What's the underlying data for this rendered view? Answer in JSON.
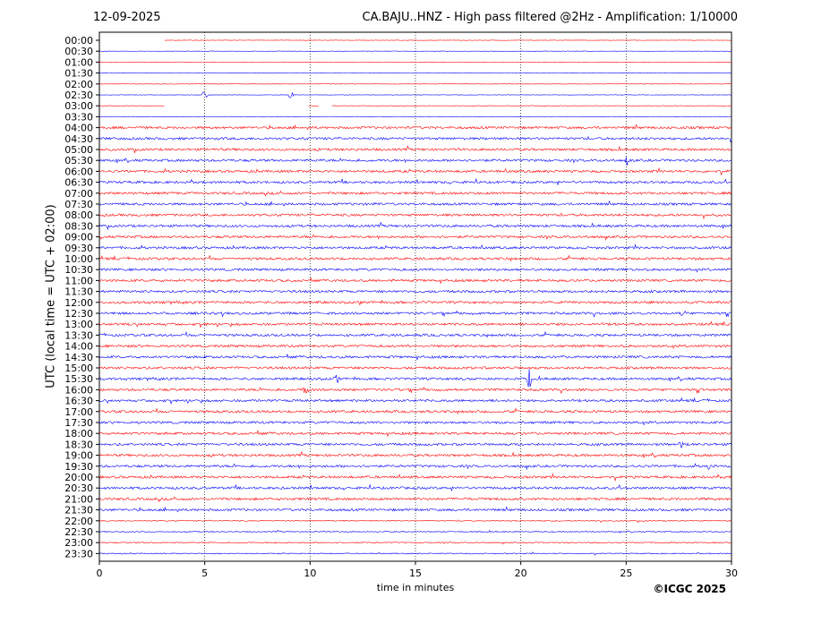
{
  "header": {
    "date": "12-09-2025",
    "title": "CA.BAJU..HNZ - High pass filtered @2Hz - Amplification: 1/10000"
  },
  "footer": {
    "copyright": "©ICGC 2025"
  },
  "chart_data": {
    "type": "line",
    "title": "CA.BAJU..HNZ - High pass filtered @2Hz - Amplification: 1/10000",
    "xlabel": "time in minutes",
    "ylabel": "UTC (local time = UTC + 02:00)",
    "xlim": [
      0,
      30
    ],
    "xticks": [
      0,
      5,
      10,
      15,
      20,
      25,
      30
    ],
    "grid": "vertical dotted lines at 5-minute intervals",
    "row_labels": [
      "00:00",
      "00:30",
      "01:00",
      "01:30",
      "02:00",
      "02:30",
      "03:00",
      "03:30",
      "04:00",
      "04:30",
      "05:00",
      "05:30",
      "06:00",
      "06:30",
      "07:00",
      "07:30",
      "08:00",
      "08:30",
      "09:00",
      "09:30",
      "10:00",
      "10:30",
      "11:00",
      "11:30",
      "12:00",
      "12:30",
      "13:00",
      "13:30",
      "14:00",
      "14:30",
      "15:00",
      "15:30",
      "16:00",
      "16:30",
      "17:00",
      "17:30",
      "18:00",
      "18:30",
      "19:00",
      "19:30",
      "20:00",
      "20:30",
      "21:00",
      "21:30",
      "22:00",
      "22:30",
      "23:00",
      "23:30"
    ],
    "colors": [
      "#ff0000",
      "#0000ff"
    ],
    "data_start_minute_first_row": 3.1,
    "gap_row": "03:00",
    "gap_minutes": [
      3.1,
      11.0
    ],
    "events": [
      {
        "row": "02:30",
        "minute": 5.0,
        "amplitude": 0.9
      },
      {
        "row": "03:00",
        "minute": 5.0,
        "amplitude": 1.4
      },
      {
        "row": "03:00",
        "minute": 9.1,
        "amplitude": 1.7
      },
      {
        "row": "02:30",
        "minute": 9.1,
        "amplitude": 0.7
      },
      {
        "row": "05:30",
        "minute": 25.05,
        "amplitude": 0.6
      },
      {
        "row": "07:30",
        "minute": 13.1,
        "amplitude": 0.3
      },
      {
        "row": "09:30",
        "minute": 27.2,
        "amplitude": 0.3
      },
      {
        "row": "12:30",
        "minute": 27.7,
        "amplitude": 0.35
      },
      {
        "row": "15:30",
        "minute": 20.4,
        "amplitude": 1.1
      },
      {
        "row": "15:30",
        "minute": 11.25,
        "amplitude": 0.6
      },
      {
        "row": "16:00",
        "minute": 9.8,
        "amplitude": 0.9
      },
      {
        "row": "18:30",
        "minute": 27.6,
        "amplitude": 0.45
      },
      {
        "row": "19:30",
        "minute": 28.9,
        "amplitude": 0.25
      }
    ]
  }
}
